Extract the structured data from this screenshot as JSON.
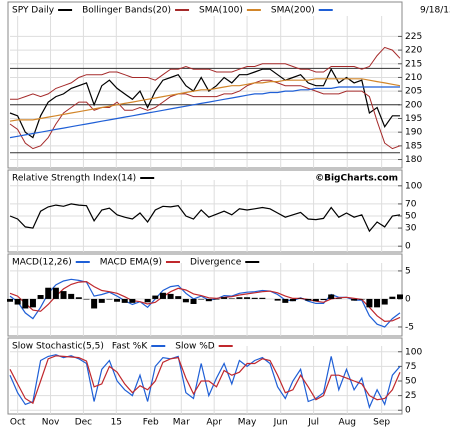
{
  "chart_data": [
    {
      "type": "line",
      "date": "9/18/15",
      "xlim": [
        0,
        51
      ],
      "ylim": [
        178,
        231
      ],
      "yticks": [
        180,
        185,
        190,
        195,
        200,
        205,
        210,
        215,
        220,
        225
      ],
      "hlines": [
        213.3,
        200,
        182.5
      ],
      "grid": true,
      "series": [
        {
          "name": "SPY Daily",
          "color": "#000000",
          "values": [
            197,
            196,
            190,
            188,
            196,
            201,
            203,
            204,
            206,
            207,
            208,
            200,
            207,
            209,
            206,
            204,
            202,
            205,
            199,
            205,
            209,
            210,
            211,
            207,
            205,
            210,
            205,
            207,
            210,
            208,
            211,
            211,
            212,
            213,
            213,
            211,
            209,
            210,
            211,
            208,
            207,
            207,
            213,
            208,
            210,
            208,
            209,
            197,
            199,
            192,
            196,
            196
          ]
        },
        {
          "name": "Bollinger Bands(20)",
          "color": "#a52a2a",
          "upper": [
            202,
            202,
            203,
            204,
            203,
            204,
            206,
            207,
            208,
            210,
            211,
            211,
            211,
            212,
            212,
            211,
            210,
            210,
            210,
            209,
            211,
            213,
            213,
            214,
            213,
            213,
            213,
            212,
            212,
            212,
            213,
            214,
            214,
            215,
            215,
            215,
            215,
            214,
            213,
            213,
            212,
            212,
            214,
            214,
            214,
            214,
            213,
            214,
            218,
            221,
            220,
            217
          ],
          "lower": [
            193,
            191,
            186,
            184,
            185,
            188,
            193,
            197,
            199,
            201,
            201,
            198,
            199,
            199,
            201,
            198,
            198,
            199,
            198,
            199,
            201,
            203,
            204,
            204,
            203,
            203,
            203,
            203,
            204,
            204,
            205,
            207,
            208,
            209,
            209,
            208,
            207,
            207,
            207,
            206,
            205,
            204,
            204,
            204,
            205,
            205,
            205,
            203,
            194,
            186,
            184,
            185
          ]
        },
        {
          "name": "SMA(100)",
          "color": "#d2862a",
          "values": [
            194,
            194.5,
            194.5,
            194.5,
            195,
            195.5,
            196,
            196.5,
            197,
            197.5,
            198,
            198.5,
            199,
            199.5,
            200,
            200.5,
            201,
            201.5,
            202,
            202.5,
            203,
            203.5,
            204,
            204.5,
            205,
            205.5,
            205.5,
            206,
            206.5,
            207,
            207,
            207.5,
            208,
            208,
            208.5,
            208.5,
            209,
            209,
            209,
            209,
            209.5,
            209.5,
            209.5,
            209.5,
            209.5,
            209.5,
            209.5,
            209,
            208.5,
            208,
            207.5,
            207
          ]
        },
        {
          "name": "SMA(200)",
          "color": "#1f5fd6",
          "values": [
            188,
            188.5,
            189,
            189.5,
            190,
            190.5,
            191,
            191.5,
            192,
            192.5,
            193,
            193.5,
            194,
            194.5,
            195,
            195.5,
            196,
            196.5,
            197,
            197.5,
            198,
            198.5,
            199,
            199.5,
            200,
            200.5,
            201,
            201.5,
            202,
            202.5,
            203,
            203.5,
            204,
            204,
            204.5,
            204.5,
            205,
            205,
            205.5,
            205.5,
            206,
            206,
            206,
            206.5,
            206.5,
            206.5,
            206.5,
            206.5,
            206.5,
            206.5,
            206.5,
            206.5
          ]
        }
      ]
    },
    {
      "type": "line",
      "source": "©BigCharts.com",
      "xlim": [
        0,
        51
      ],
      "ylim": [
        -3,
        103
      ],
      "yticks": [
        0,
        30,
        50,
        70,
        100
      ],
      "grid": true,
      "series": [
        {
          "name": "Relative Strength Index(14)",
          "color": "#000000",
          "values": [
            50,
            45,
            32,
            30,
            58,
            65,
            68,
            66,
            70,
            68,
            67,
            42,
            60,
            63,
            52,
            48,
            45,
            55,
            40,
            60,
            66,
            65,
            67,
            50,
            45,
            60,
            48,
            53,
            58,
            52,
            62,
            60,
            62,
            64,
            62,
            55,
            48,
            52,
            56,
            45,
            44,
            46,
            64,
            48,
            55,
            48,
            52,
            25,
            40,
            32,
            50,
            52
          ]
        }
      ]
    },
    {
      "type": "line",
      "xlim": [
        0,
        51
      ],
      "ylim": [
        -5.9,
        5.7
      ],
      "yticks": [
        -5,
        0,
        5
      ],
      "grid": true,
      "series": [
        {
          "name": "MACD(12,26)",
          "color": "#1f5fd6",
          "values": [
            0.5,
            -0.5,
            -2.5,
            -3.5,
            -1.5,
            1,
            2.5,
            3.2,
            3.5,
            3.3,
            3,
            0.5,
            0.8,
            1.2,
            0.5,
            -0.3,
            -1,
            -0.5,
            -1.5,
            0,
            1.5,
            2.2,
            2.4,
            1,
            0,
            0.5,
            -0.2,
            0,
            0.6,
            0.5,
            1,
            1.2,
            1.3,
            1.5,
            1.4,
            0.8,
            -0.2,
            -0.3,
            0.2,
            -0.4,
            -0.8,
            -0.8,
            0.8,
            0.3,
            0.3,
            -0.2,
            -0.2,
            -3,
            -4.5,
            -5,
            -3.5,
            -2.5
          ]
        },
        {
          "name": "MACD EMA(9)",
          "color": "#c0282d",
          "values": [
            1,
            0.5,
            -0.8,
            -2,
            -2.2,
            -1,
            0.5,
            1.8,
            2.6,
            3,
            3.1,
            2.2,
            1.5,
            1.3,
            1,
            0.4,
            -0.3,
            -0.5,
            -0.9,
            -0.6,
            0.4,
            1.3,
            1.9,
            1.6,
            0.9,
            0.6,
            0.2,
            0.1,
            0.3,
            0.4,
            0.7,
            0.9,
            1.1,
            1.3,
            1.4,
            1.1,
            0.5,
            0.1,
            0.1,
            -0.1,
            -0.4,
            -0.6,
            0,
            0.2,
            0.3,
            0.1,
            -0.1,
            -1.5,
            -3,
            -4,
            -3.9,
            -3.3
          ]
        },
        {
          "name": "Divergence",
          "color": "#000000",
          "kind": "bar",
          "values": [
            -0.5,
            -1,
            -1.7,
            -1.5,
            0.7,
            2,
            2,
            1.4,
            0.9,
            0.3,
            -0.1,
            -1.7,
            -0.7,
            -0.1,
            -0.5,
            -0.7,
            -0.7,
            0,
            -0.6,
            0.6,
            1.1,
            0.9,
            0.5,
            -0.6,
            -0.9,
            -0.1,
            -0.4,
            -0.1,
            0.3,
            0.1,
            0.3,
            0.3,
            0.2,
            0.2,
            0,
            -0.3,
            -0.7,
            -0.4,
            0.1,
            -0.3,
            -0.4,
            -0.2,
            0.8,
            0.1,
            0,
            -0.3,
            -0.1,
            -1.5,
            -1.5,
            -1,
            0.4,
            0.8
          ]
        }
      ]
    },
    {
      "type": "line",
      "title": "Slow Stochastic(5,5)",
      "xlim": [
        0,
        51
      ],
      "ylim": [
        -3,
        103
      ],
      "yticks": [
        0,
        25,
        50,
        75,
        100
      ],
      "grid": true,
      "xticks": [
        {
          "value": 1,
          "label": "Oct"
        },
        {
          "value": 5.3,
          "label": "Nov"
        },
        {
          "value": 9.6,
          "label": "Dec"
        },
        {
          "value": 13.9,
          "label": "15"
        },
        {
          "value": 18.4,
          "label": "Feb"
        },
        {
          "value": 22.4,
          "label": "Mar"
        },
        {
          "value": 26.7,
          "label": "Apr"
        },
        {
          "value": 31,
          "label": "May"
        },
        {
          "value": 35.4,
          "label": "Jun"
        },
        {
          "value": 39.7,
          "label": "Jul"
        },
        {
          "value": 44.1,
          "label": "Aug"
        },
        {
          "value": 48.6,
          "label": "Sep"
        }
      ],
      "series": [
        {
          "name": "Fast %K",
          "color": "#1f5fd6",
          "values": [
            60,
            30,
            10,
            15,
            85,
            92,
            95,
            90,
            93,
            88,
            80,
            15,
            70,
            85,
            50,
            35,
            25,
            60,
            15,
            75,
            90,
            88,
            92,
            30,
            20,
            80,
            25,
            55,
            80,
            45,
            85,
            75,
            85,
            90,
            80,
            40,
            20,
            50,
            70,
            15,
            20,
            30,
            92,
            35,
            70,
            35,
            55,
            5,
            35,
            10,
            60,
            75
          ]
        },
        {
          "name": "Slow %D",
          "color": "#c0282d",
          "values": [
            70,
            45,
            20,
            12,
            50,
            88,
            93,
            92,
            91,
            90,
            84,
            40,
            45,
            75,
            65,
            45,
            30,
            42,
            35,
            50,
            82,
            88,
            90,
            55,
            28,
            50,
            50,
            40,
            68,
            60,
            65,
            80,
            80,
            88,
            85,
            60,
            30,
            35,
            60,
            40,
            18,
            25,
            60,
            60,
            55,
            50,
            45,
            25,
            18,
            20,
            35,
            65
          ]
        }
      ]
    }
  ]
}
